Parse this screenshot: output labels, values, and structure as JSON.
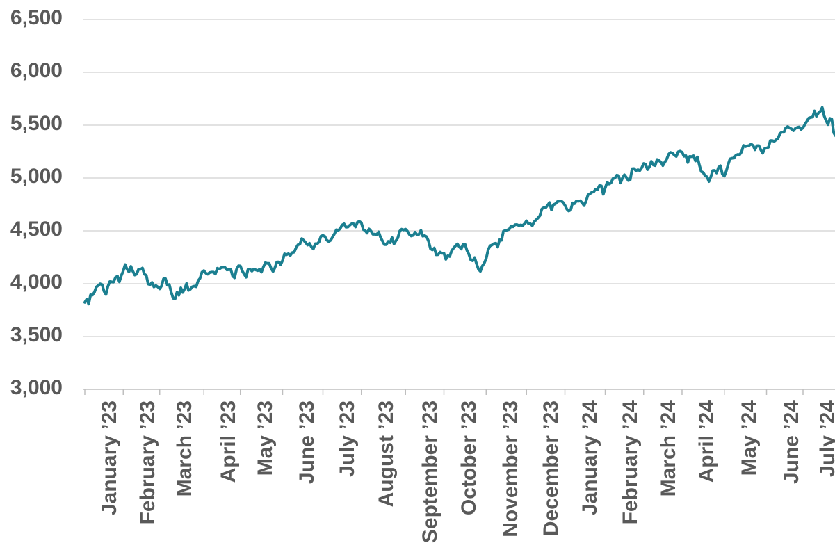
{
  "colors": {
    "line": "#1b7f90",
    "gridline": "#d9d9d9",
    "axis": "#bfbfbf",
    "tick_label": "#595959",
    "background": "#ffffff"
  },
  "chart_data": {
    "type": "line",
    "title": "",
    "xlabel": "",
    "ylabel": "",
    "legend": "none",
    "grid": "horizontal",
    "line_color": "#1b7f90",
    "y_axis": {
      "min": 3000,
      "max": 6500,
      "step": 500,
      "tick_labels": [
        "6,500",
        "6,000",
        "5,500",
        "5,000",
        "4,500",
        "4,000",
        "3,500",
        "3,000"
      ]
    },
    "x_axis": {
      "label_rotation_deg": -90,
      "tick_labels": [
        "January ’23",
        "February ’23",
        "March ’23",
        "April ’23",
        "May ’23",
        "June ’23",
        "July ’23",
        "August ’23",
        "September ’23",
        "October ’23",
        "November ’23",
        "December ’23",
        "January ’24",
        "February ’24",
        "March ’24",
        "April ’24",
        "May ’24",
        "June ’24",
        "July ’24"
      ]
    },
    "months": [
      {
        "label": "January ’23",
        "values": [
          3824,
          3853,
          3808,
          3895,
          3892,
          3919,
          3970,
          3983,
          3999,
          3991,
          3929,
          3898,
          3973,
          4020,
          4017,
          4016,
          4060,
          4071,
          4018,
          4077
        ]
      },
      {
        "label": "February ’23",
        "values": [
          4119,
          4180,
          4136,
          4111,
          4164,
          4118,
          4082,
          4090,
          4137,
          4136,
          4148,
          4090,
          4079,
          3997,
          3991,
          4012,
          3970,
          3982,
          3970
        ]
      },
      {
        "label": "March ’23",
        "values": [
          3951,
          3981,
          4046,
          4048,
          3986,
          3992,
          3918,
          3862,
          3856,
          3919,
          3891,
          3960,
          3917,
          3951,
          4002,
          3937,
          3948,
          3971,
          3977,
          3971,
          4028,
          4051,
          4109
        ]
      },
      {
        "label": "April ’23",
        "values": [
          4124,
          4100,
          4090,
          4105,
          4109,
          4109,
          4092,
          4146,
          4138,
          4151,
          4155,
          4154,
          4130,
          4133,
          4137,
          4071,
          4056,
          4135,
          4169
        ]
      },
      {
        "label": "May ’23",
        "values": [
          4168,
          4120,
          4091,
          4061,
          4136,
          4138,
          4119,
          4138,
          4131,
          4124,
          4136,
          4110,
          4159,
          4198,
          4192,
          4193,
          4145,
          4115,
          4151,
          4205,
          4206,
          4180
        ]
      },
      {
        "label": "June ’23",
        "values": [
          4221,
          4282,
          4274,
          4284,
          4268,
          4294,
          4299,
          4339,
          4369,
          4373,
          4426,
          4410,
          4389,
          4366,
          4382,
          4348,
          4329,
          4378,
          4376,
          4396,
          4450
        ]
      },
      {
        "label": "July ’23",
        "values": [
          4456,
          4447,
          4412,
          4399,
          4410,
          4440,
          4472,
          4510,
          4505,
          4522,
          4555,
          4566,
          4535,
          4536,
          4554,
          4567,
          4566,
          4537,
          4582,
          4589
        ]
      },
      {
        "label": "August ’23",
        "values": [
          4577,
          4513,
          4502,
          4478,
          4518,
          4499,
          4468,
          4469,
          4464,
          4490,
          4438,
          4404,
          4370,
          4370,
          4400,
          4388,
          4436,
          4376,
          4406,
          4433,
          4498,
          4515,
          4508
        ]
      },
      {
        "label": "September ’23",
        "values": [
          4516,
          4497,
          4465,
          4451,
          4457,
          4487,
          4462,
          4467,
          4505,
          4450,
          4454,
          4444,
          4402,
          4330,
          4320,
          4337,
          4274,
          4275,
          4299,
          4288
        ]
      },
      {
        "label": "October ’23",
        "values": [
          4288,
          4230,
          4264,
          4258,
          4309,
          4336,
          4358,
          4377,
          4350,
          4328,
          4374,
          4373,
          4315,
          4278,
          4224,
          4217,
          4247,
          4187,
          4137,
          4117,
          4167,
          4194
        ]
      },
      {
        "label": "November ’23",
        "values": [
          4238,
          4318,
          4358,
          4366,
          4378,
          4383,
          4347,
          4415,
          4411,
          4496,
          4503,
          4508,
          4514,
          4547,
          4538,
          4557,
          4559,
          4550,
          4555,
          4550,
          4568
        ]
      },
      {
        "label": "December ’23",
        "values": [
          4595,
          4569,
          4567,
          4549,
          4586,
          4604,
          4622,
          4644,
          4707,
          4720,
          4719,
          4741,
          4768,
          4698,
          4747,
          4755,
          4775,
          4781,
          4783,
          4770
        ]
      },
      {
        "label": "January ’24",
        "values": [
          4743,
          4705,
          4688,
          4697,
          4764,
          4757,
          4783,
          4780,
          4784,
          4766,
          4739,
          4781,
          4840,
          4850,
          4865,
          4869,
          4894,
          4891,
          4928,
          4925,
          4846
        ]
      },
      {
        "label": "February ’24",
        "values": [
          4906,
          4959,
          4943,
          4954,
          4995,
          4998,
          5027,
          5022,
          4953,
          5001,
          5030,
          5006,
          4976,
          4982,
          5087,
          5089,
          5069,
          5078,
          5070,
          5096
        ]
      },
      {
        "label": "March ’24",
        "values": [
          5137,
          5131,
          5079,
          5105,
          5157,
          5124,
          5118,
          5175,
          5165,
          5150,
          5117,
          5149,
          5178,
          5225,
          5242,
          5234,
          5218,
          5204,
          5248,
          5254
        ]
      },
      {
        "label": "April ’24",
        "values": [
          5244,
          5206,
          5211,
          5147,
          5204,
          5202,
          5210,
          5161,
          5199,
          5123,
          5061,
          5051,
          5022,
          5011,
          4967,
          5011,
          5071,
          5072,
          5048,
          5100,
          5116,
          5036
        ]
      },
      {
        "label": "May ’24",
        "values": [
          5018,
          5064,
          5128,
          5181,
          5187,
          5188,
          5214,
          5223,
          5221,
          5247,
          5308,
          5297,
          5303,
          5308,
          5321,
          5307,
          5268,
          5305,
          5306,
          5267,
          5235,
          5278
        ]
      },
      {
        "label": "June ’24",
        "values": [
          5283,
          5291,
          5354,
          5353,
          5347,
          5361,
          5375,
          5421,
          5434,
          5432,
          5473,
          5487,
          5473,
          5465,
          5448,
          5469,
          5478,
          5483,
          5460
        ]
      },
      {
        "label": "July ’24",
        "values": [
          5475,
          5509,
          5537,
          5567,
          5573,
          5577,
          5634,
          5584,
          5615,
          5631,
          5667,
          5588,
          5544,
          5505,
          5564,
          5556,
          5427,
          5399,
          5459
        ]
      }
    ]
  }
}
